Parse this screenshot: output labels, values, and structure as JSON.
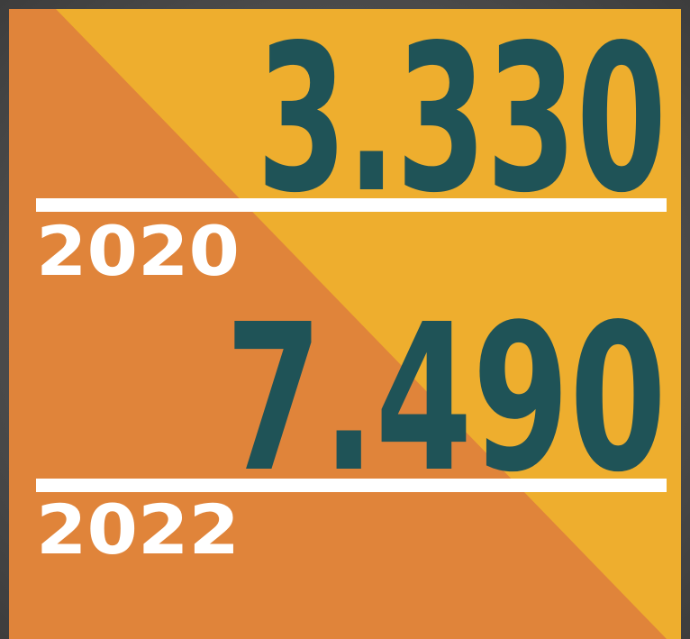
{
  "items": [
    {
      "value": "3.330",
      "year": "2020"
    },
    {
      "value": "7.490",
      "year": "2022"
    }
  ]
}
